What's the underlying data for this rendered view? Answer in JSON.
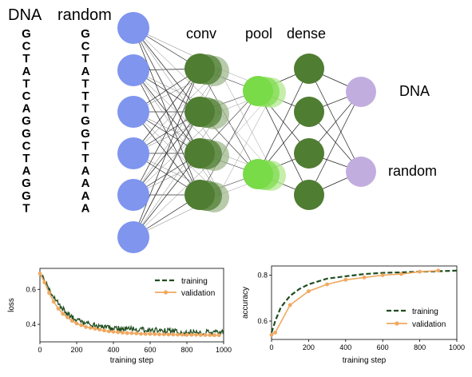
{
  "sequences": {
    "dna_header": "DNA",
    "random_header": "random",
    "dna": [
      "G",
      "C",
      "T",
      "A",
      "T",
      "C",
      "A",
      "G",
      "G",
      "C",
      "T",
      "A",
      "G",
      "G",
      "T"
    ],
    "random": [
      "G",
      "C",
      "T",
      "A",
      "T",
      "T",
      "T",
      "G",
      "G",
      "T",
      "T",
      "A",
      "A",
      "A",
      "A"
    ]
  },
  "network": {
    "layer_labels": {
      "conv": "conv",
      "pool": "pool",
      "dense": "dense"
    },
    "output_labels": [
      "DNA",
      "random"
    ],
    "colors": {
      "input": "#7f95ee",
      "conv": "#4f7d31",
      "conv_shadow": "#98b486",
      "pool": "#79db47",
      "pool_shadow": "#b6ea95",
      "dense": "#4f7d31",
      "output": "#c2addf"
    }
  },
  "loss_chart": {
    "chart_data": {
      "type": "line",
      "xlabel": "training step",
      "ylabel": "loss",
      "xlim": [
        0,
        1000
      ],
      "ylim": [
        0.3,
        0.72
      ],
      "xticks": [
        0,
        200,
        400,
        600,
        800,
        1000
      ],
      "yticks": [
        0.4,
        0.6
      ],
      "legend_position": "top-right",
      "series": [
        {
          "name": "training",
          "style": "dashed",
          "color": "#1f4d1f",
          "x": [
            0,
            50,
            100,
            150,
            200,
            300,
            400,
            500,
            600,
            700,
            800,
            900,
            1000
          ],
          "y": [
            0.7,
            0.6,
            0.52,
            0.46,
            0.42,
            0.39,
            0.375,
            0.37,
            0.365,
            0.36,
            0.355,
            0.352,
            0.35
          ]
        },
        {
          "name": "validation",
          "style": "solid-marker",
          "color": "#f0a860",
          "x": [
            0,
            25,
            50,
            75,
            100,
            125,
            150,
            175,
            200,
            225,
            250,
            275,
            300,
            325,
            350,
            375,
            400,
            425,
            450,
            475,
            500,
            525,
            550,
            575,
            600,
            625,
            650,
            675,
            700,
            725,
            750,
            775,
            800,
            825,
            850,
            875,
            900,
            925,
            950,
            975
          ],
          "y": [
            0.69,
            0.64,
            0.58,
            0.53,
            0.49,
            0.46,
            0.44,
            0.42,
            0.405,
            0.395,
            0.385,
            0.38,
            0.375,
            0.37,
            0.365,
            0.36,
            0.358,
            0.355,
            0.352,
            0.35,
            0.35,
            0.348,
            0.346,
            0.345,
            0.345,
            0.344,
            0.343,
            0.343,
            0.342,
            0.342,
            0.341,
            0.341,
            0.34,
            0.34,
            0.34,
            0.339,
            0.339,
            0.339,
            0.338,
            0.338
          ]
        }
      ]
    }
  },
  "accuracy_chart": {
    "chart_data": {
      "type": "line",
      "xlabel": "training step",
      "ylabel": "accuracy",
      "xlim": [
        0,
        1000
      ],
      "ylim": [
        0.52,
        0.84
      ],
      "xticks": [
        0,
        200,
        400,
        600,
        800,
        1000
      ],
      "yticks": [
        0.6,
        0.8
      ],
      "legend_position": "center-right",
      "series": [
        {
          "name": "training",
          "style": "dashed",
          "color": "#1f4d1f",
          "x": [
            0,
            20,
            50,
            100,
            150,
            200,
            300,
            400,
            500,
            600,
            700,
            800,
            900,
            1000
          ],
          "y": [
            0.55,
            0.6,
            0.66,
            0.71,
            0.74,
            0.76,
            0.785,
            0.795,
            0.805,
            0.81,
            0.812,
            0.815,
            0.817,
            0.82
          ]
        },
        {
          "name": "validation",
          "style": "solid-marker",
          "color": "#f0a860",
          "x": [
            0,
            20,
            100,
            200,
            300,
            400,
            500,
            600,
            700,
            800,
            900
          ],
          "y": [
            0.54,
            0.55,
            0.67,
            0.73,
            0.76,
            0.78,
            0.79,
            0.8,
            0.805,
            0.815,
            0.82
          ]
        }
      ]
    }
  }
}
